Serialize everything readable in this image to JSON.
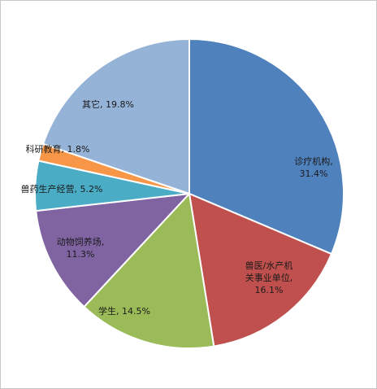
{
  "chart_data": {
    "type": "pie",
    "title": "",
    "slices": [
      {
        "label": "诊疗机构",
        "percent_text": "31.4%",
        "value": 31.4,
        "color": "#4F81BD"
      },
      {
        "label": "兽医/水产机关事业单位",
        "percent_text": "16.1%",
        "value": 16.1,
        "color": "#C0504D"
      },
      {
        "label": "学生",
        "percent_text": "14.5%",
        "value": 14.5,
        "color": "#9BBB59"
      },
      {
        "label": "动物饲养场",
        "percent_text": "11.3%",
        "value": 11.3,
        "color": "#8064A2"
      },
      {
        "label": "兽药生产经营",
        "percent_text": "5.2%",
        "value": 5.2,
        "color": "#4BACC6"
      },
      {
        "label": "科研教育",
        "percent_text": "1.8%",
        "value": 1.8,
        "color": "#F79646"
      },
      {
        "label": "其它",
        "percent_text": "19.8%",
        "value": 19.8,
        "color": "#95B3D7"
      }
    ]
  }
}
